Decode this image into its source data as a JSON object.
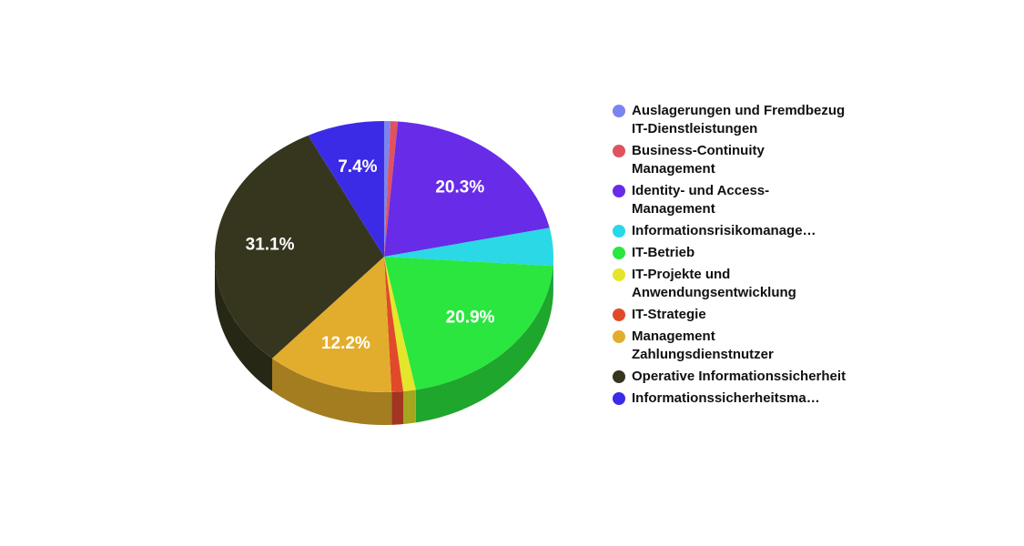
{
  "chart_data": {
    "type": "pie",
    "style": "3d",
    "legend_position": "right",
    "slices": [
      {
        "label": "Auslagerungen und Fremdbezug IT-Dienstleistungen",
        "value": 0.6,
        "display": "",
        "color": "#7b84f0"
      },
      {
        "label": "Business-Continuity Management",
        "value": 0.7,
        "display": "",
        "color": "#e0525e"
      },
      {
        "label": "Identity- und Access-Management",
        "value": 20.3,
        "display": "20.3%",
        "color": "#682ce8"
      },
      {
        "label": "Informationsrisikomanage…",
        "value": 4.5,
        "display": "",
        "color": "#2bd8e6"
      },
      {
        "label": "IT-Betrieb",
        "value": 20.9,
        "display": "20.9%",
        "color": "#2be63f"
      },
      {
        "label": "IT-Projekte und Anwendungsentwicklung",
        "value": 1.2,
        "display": "",
        "color": "#e5e52b"
      },
      {
        "label": "IT-Strategie",
        "value": 1.1,
        "display": "",
        "color": "#e04a2b"
      },
      {
        "label": "Management Zahlungsdienstnutzer",
        "value": 12.2,
        "display": "12.2%",
        "color": "#e2ad2d"
      },
      {
        "label": "Operative Informationssicherheit",
        "value": 31.1,
        "display": "31.1%",
        "color": "#36361f"
      },
      {
        "label": "Informationssicherheitsma…",
        "value": 7.4,
        "display": "7.4%",
        "color": "#3c2be6"
      }
    ]
  }
}
